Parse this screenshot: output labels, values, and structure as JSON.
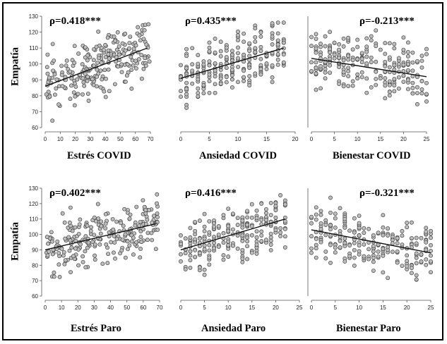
{
  "figure": {
    "y_axis_label": "Empatía"
  },
  "chart_data": [
    {
      "id": "p1",
      "type": "scatter",
      "title": "ρ=0.418***",
      "xlabel": "Estrés COVID",
      "ylabel": "Empatía",
      "xlim": [
        0,
        70
      ],
      "ylim": [
        60,
        130
      ],
      "xticks": [
        0,
        10,
        20,
        30,
        40,
        50,
        60,
        70
      ],
      "yticks": [
        60,
        70,
        80,
        90,
        100,
        110,
        120,
        130
      ],
      "fit_line": {
        "x": [
          0,
          68
        ],
        "y": [
          86,
          110
        ]
      },
      "n_points": 240,
      "seed": 11
    },
    {
      "id": "p2",
      "type": "scatter",
      "title": "ρ=0.435***",
      "xlabel": "Ansiedad COVID",
      "ylabel": "",
      "xlim": [
        0,
        20
      ],
      "ylim": [
        60,
        130
      ],
      "xticks": [
        0,
        5,
        10,
        15,
        20
      ],
      "yticks": [],
      "fit_line": {
        "x": [
          0,
          18
        ],
        "y": [
          91,
          110
        ]
      },
      "n_points": 240,
      "seed": 23
    },
    {
      "id": "p3",
      "type": "scatter",
      "title": "ρ=-0.213***",
      "xlabel": "Bienestar COVID",
      "ylabel": "",
      "xlim": [
        0,
        25
      ],
      "ylim": [
        60,
        130
      ],
      "xticks": [
        0,
        5,
        10,
        15,
        20,
        25
      ],
      "yticks": [],
      "fit_line": {
        "x": [
          0,
          25
        ],
        "y": [
          103.5,
          92
        ]
      },
      "n_points": 240,
      "seed": 37
    },
    {
      "id": "p4",
      "type": "scatter",
      "title": "ρ=0.402***",
      "xlabel": "Estrés Paro",
      "ylabel": "Empatía",
      "xlim": [
        0,
        70
      ],
      "ylim": [
        60,
        130
      ],
      "xticks": [
        0,
        10,
        20,
        30,
        40,
        50,
        60,
        70
      ],
      "yticks": [
        60,
        70,
        80,
        90,
        100,
        110,
        120,
        130
      ],
      "fit_line": {
        "x": [
          0,
          68
        ],
        "y": [
          90,
          107
        ]
      },
      "n_points": 240,
      "seed": 41
    },
    {
      "id": "p5",
      "type": "scatter",
      "title": "ρ=0.416***",
      "xlabel": "Ansiedad Paro",
      "ylabel": "",
      "xlim": [
        0,
        25
      ],
      "ylim": [
        60,
        130
      ],
      "xticks": [
        0,
        5,
        10,
        15,
        20,
        25
      ],
      "yticks": [],
      "fit_line": {
        "x": [
          0,
          22
        ],
        "y": [
          90,
          110
        ]
      },
      "n_points": 240,
      "seed": 53
    },
    {
      "id": "p6",
      "type": "scatter",
      "title": "ρ=-0.321***",
      "xlabel": "Bienestar Paro",
      "ylabel": "",
      "xlim": [
        0,
        25
      ],
      "ylim": [
        60,
        130
      ],
      "xticks": [
        0,
        5,
        10,
        15,
        20,
        25
      ],
      "yticks": [],
      "fit_line": {
        "x": [
          0,
          25
        ],
        "y": [
          103,
          88
        ]
      },
      "n_points": 240,
      "seed": 67
    }
  ]
}
